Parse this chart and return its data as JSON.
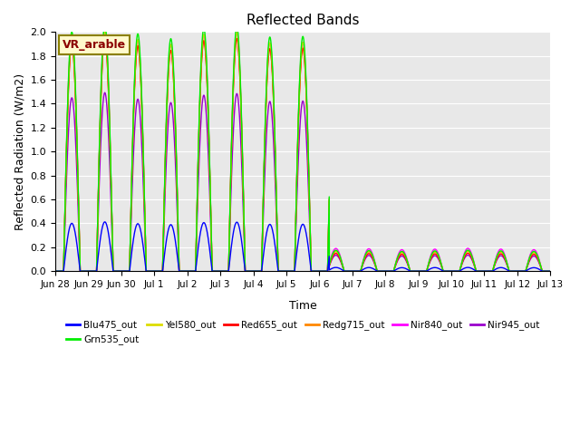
{
  "title": "Reflected Bands",
  "xlabel": "Time",
  "ylabel": "Reflected Radiation (W/m2)",
  "annotation_text": "VR_arable",
  "annotation_color": "#8B0000",
  "annotation_bg": "#FFFACD",
  "annotation_border": "#8B8000",
  "ylim": [
    0,
    2.0
  ],
  "background_color": "#e8e8e8",
  "series": [
    {
      "label": "Blu475_out",
      "color": "#0000FF"
    },
    {
      "label": "Grn535_out",
      "color": "#00EE00"
    },
    {
      "label": "Yel580_out",
      "color": "#DDDD00"
    },
    {
      "label": "Red655_out",
      "color": "#FF0000"
    },
    {
      "label": "Redg715_out",
      "color": "#FF8800"
    },
    {
      "label": "Nir840_out",
      "color": "#FF00FF"
    },
    {
      "label": "Nir945_out",
      "color": "#9900CC"
    }
  ],
  "scales_before": {
    "Blu475_out": 0.4,
    "Grn535_out": 2.0,
    "Yel580_out": 1.95,
    "Red655_out": 1.9,
    "Redg715_out": 1.9,
    "Nir840_out": 1.95,
    "Nir945_out": 1.45
  },
  "scales_after": {
    "Blu475_out": 0.03,
    "Grn535_out": 0.17,
    "Yel580_out": 0.165,
    "Red655_out": 0.145,
    "Redg715_out": 0.16,
    "Nir840_out": 0.185,
    "Nir945_out": 0.13
  },
  "cutoff_day": 8.3,
  "n_days": 15,
  "pts_per_day": 480,
  "tick_labels": [
    "Jun 28",
    "Jun 29",
    "Jun 30",
    "Jul 1",
    "Jul 2",
    "Jul 3",
    "Jul 4",
    "Jul 5",
    "Jul 6",
    "Jul 7",
    "Jul 8",
    "Jul 9",
    "Jul 10",
    "Jul 11",
    "Jul 12",
    "Jul 13"
  ]
}
